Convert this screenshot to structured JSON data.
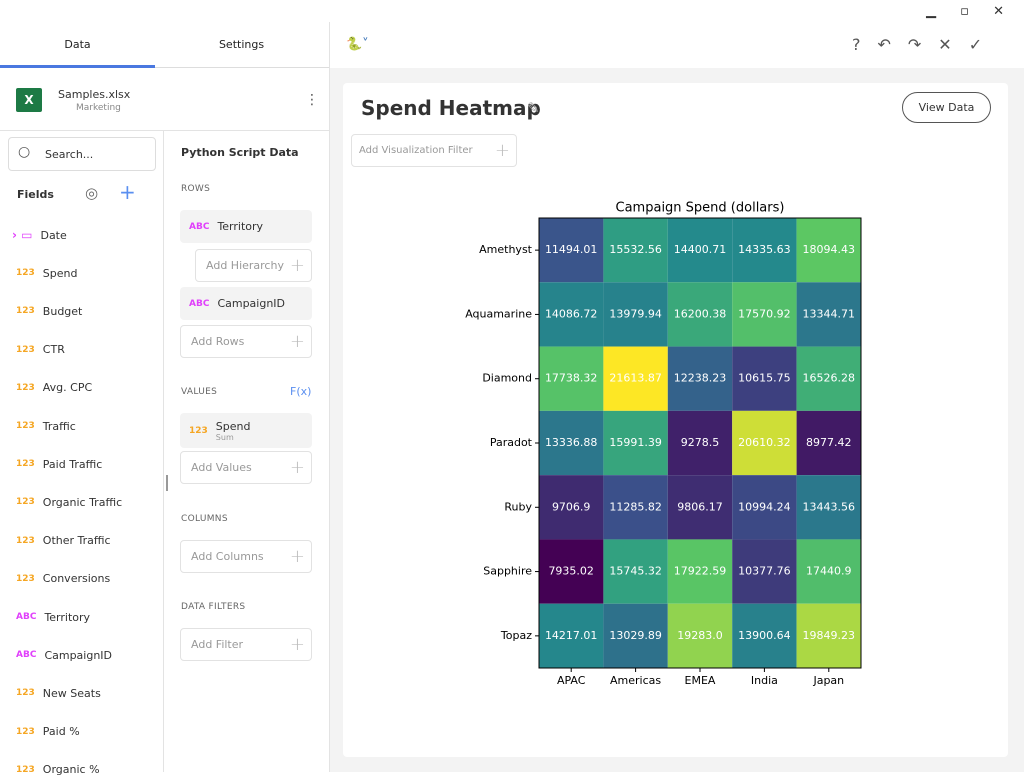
{
  "tabs": [
    "Data",
    "Settings"
  ],
  "file": {
    "name": "Samples.xlsx",
    "sheet": "Marketing"
  },
  "search_placeholder": "Search...",
  "fields_label": "Fields",
  "fields": [
    {
      "name": "Date"
    },
    {
      "type": "123",
      "name": "Spend"
    },
    {
      "type": "123",
      "name": "Budget"
    },
    {
      "type": "123",
      "name": "CTR"
    },
    {
      "type": "123",
      "name": "Avg. CPC"
    },
    {
      "type": "123",
      "name": "Traffic"
    },
    {
      "type": "123",
      "name": "Paid Traffic"
    },
    {
      "type": "123",
      "name": "Organic Traffic"
    },
    {
      "type": "123",
      "name": "Other Traffic"
    },
    {
      "type": "123",
      "name": "Conversions"
    },
    {
      "type": "ABC",
      "name": "Territory"
    },
    {
      "type": "ABC",
      "name": "CampaignID"
    },
    {
      "type": "123",
      "name": "New Seats"
    },
    {
      "type": "123",
      "name": "Paid %"
    },
    {
      "type": "123",
      "name": "Organic %"
    }
  ],
  "config": {
    "title": "Python Script Data",
    "rows_label": "ROWS",
    "rows": [
      {
        "type": "ABC",
        "name": "Territory"
      },
      {
        "type": "ABC",
        "name": "CampaignID"
      }
    ],
    "add_hierarchy": "Add Hierarchy",
    "add_rows": "Add Rows",
    "values_label": "VALUES",
    "fx": "F(x)",
    "value": {
      "type": "123",
      "name": "Spend",
      "aggregation": "Sum"
    },
    "add_values": "Add Values",
    "columns_label": "COLUMNS",
    "add_columns": "Add Columns",
    "filters_label": "DATA FILTERS",
    "add_filter": "Add Filter"
  },
  "visualization": {
    "title": "Spend Heatmap",
    "view_data": "View Data",
    "add_filter": "Add Visualization Filter"
  },
  "chart_data": {
    "type": "heatmap",
    "title": "Campaign Spend (dollars)",
    "colormap": "viridis",
    "x": [
      "APAC",
      "Americas",
      "EMEA",
      "India",
      "Japan"
    ],
    "y": [
      "Amethyst",
      "Aquamarine",
      "Diamond",
      "Paradot",
      "Ruby",
      "Sapphire",
      "Topaz"
    ],
    "values": [
      [
        11494.01,
        15532.56,
        14400.71,
        14335.63,
        18094.43
      ],
      [
        14086.72,
        13979.94,
        16200.38,
        17570.92,
        13344.71
      ],
      [
        17738.32,
        21613.87,
        12238.23,
        10615.75,
        16526.28
      ],
      [
        13336.88,
        15991.39,
        9278.5,
        20610.32,
        8977.42
      ],
      [
        9706.9,
        11285.82,
        9806.17,
        10994.24,
        13443.56
      ],
      [
        7935.02,
        15745.32,
        17922.59,
        10377.76,
        17440.9
      ],
      [
        14217.01,
        13029.89,
        19283.0,
        13900.64,
        19849.23
      ]
    ],
    "value_labels": [
      [
        "11494.01",
        "15532.56",
        "14400.71",
        "14335.63",
        "18094.43"
      ],
      [
        "14086.72",
        "13979.94",
        "16200.38",
        "17570.92",
        "13344.71"
      ],
      [
        "17738.32",
        "21613.87",
        "12238.23",
        "10615.75",
        "16526.28"
      ],
      [
        "13336.88",
        "15991.39",
        "9278.5",
        "20610.32",
        "8977.42"
      ],
      [
        "9706.9",
        "11285.82",
        "9806.17",
        "10994.24",
        "13443.56"
      ],
      [
        "7935.02",
        "15745.32",
        "17922.59",
        "10377.76",
        "17440.9"
      ],
      [
        "14217.01",
        "13029.89",
        "19283.0",
        "13900.64",
        "19849.23"
      ]
    ]
  }
}
